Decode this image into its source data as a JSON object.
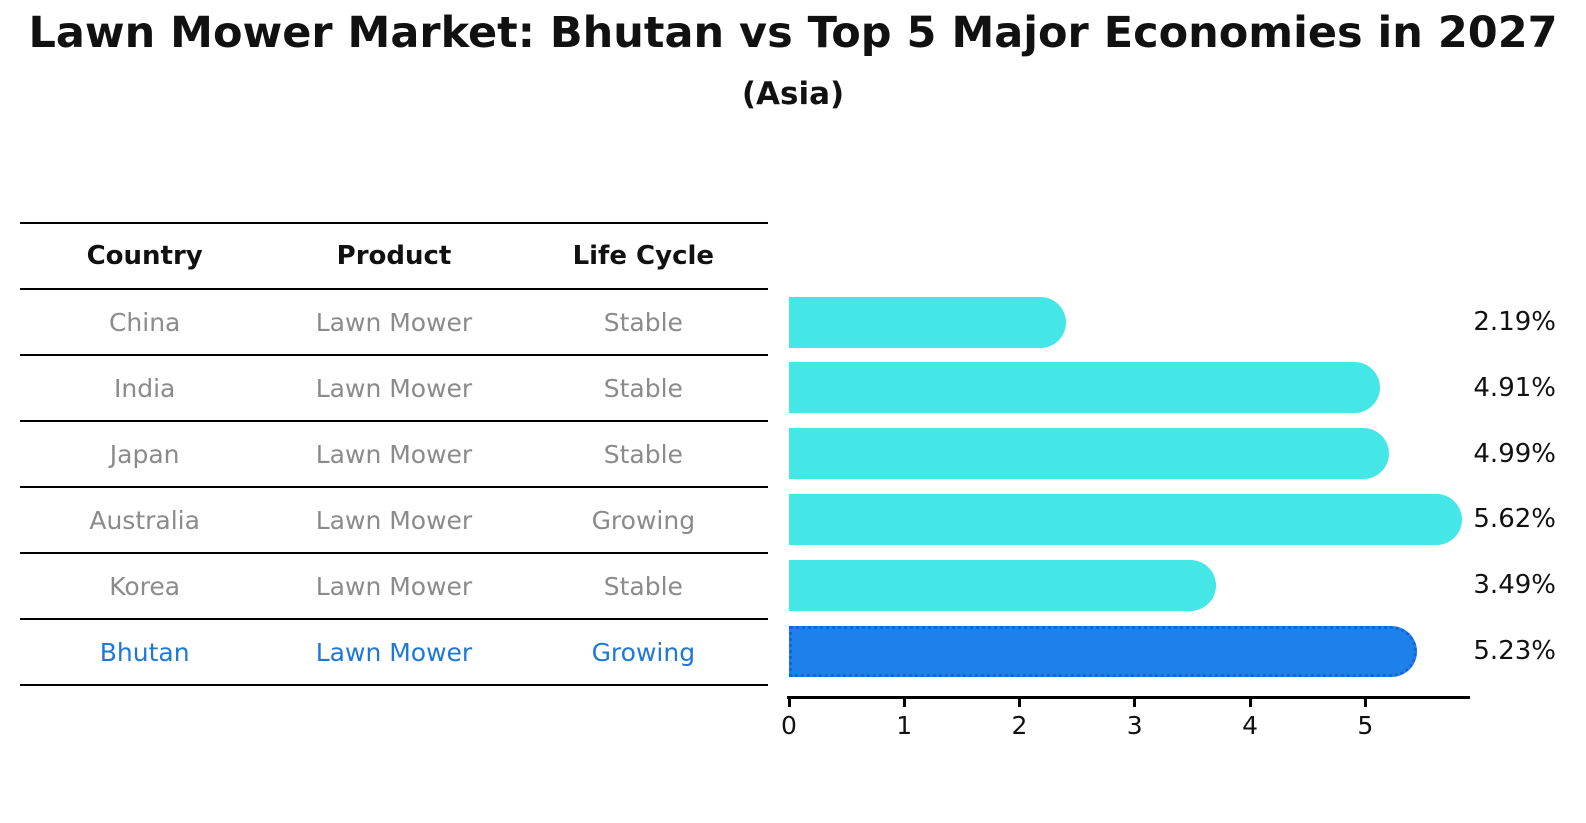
{
  "title": "Lawn Mower Market: Bhutan vs Top 5 Major Economies in 2027",
  "subtitle": "(Asia)",
  "table": {
    "headers": [
      "Country",
      "Product",
      "Life Cycle"
    ],
    "rows": [
      {
        "country": "China",
        "product": "Lawn Mower",
        "life_cycle": "Stable",
        "highlight": false
      },
      {
        "country": "India",
        "product": "Lawn Mower",
        "life_cycle": "Stable",
        "highlight": false
      },
      {
        "country": "Japan",
        "product": "Lawn Mower",
        "life_cycle": "Stable",
        "highlight": false
      },
      {
        "country": "Australia",
        "product": "Lawn Mower",
        "life_cycle": "Growing",
        "highlight": false
      },
      {
        "country": "Korea",
        "product": "Lawn Mower",
        "life_cycle": "Stable",
        "highlight": false
      },
      {
        "country": "Bhutan",
        "product": "Lawn Mower",
        "life_cycle": "Growing",
        "highlight": true
      }
    ]
  },
  "chart_data": {
    "type": "bar",
    "orientation": "horizontal",
    "title": "Lawn Mower Market: Bhutan vs Top 5 Major Economies in 2027",
    "subtitle": "(Asia)",
    "categories": [
      "China",
      "India",
      "Japan",
      "Australia",
      "Korea",
      "Bhutan"
    ],
    "values": [
      2.19,
      4.91,
      4.99,
      5.62,
      3.49,
      5.23
    ],
    "value_labels": [
      "2.19%",
      "4.91%",
      "4.99%",
      "5.62%",
      "3.49%",
      "5.23%"
    ],
    "xlim": [
      0,
      5.9
    ],
    "x_ticks": [
      0,
      1,
      2,
      3,
      4,
      5
    ],
    "x_tick_labels": [
      "0",
      "1",
      "2",
      "3",
      "4",
      "5"
    ],
    "highlight_index": 5,
    "grid": false,
    "legend": "none",
    "colors": {
      "bar": "#45E6E6",
      "highlight_bar": "#1E80EB",
      "highlight_border": "#1565D4",
      "row_text": "#8B8B8B",
      "highlight_text": "#1E78D7",
      "header_text": "#111111",
      "value_text": "#111111"
    }
  }
}
